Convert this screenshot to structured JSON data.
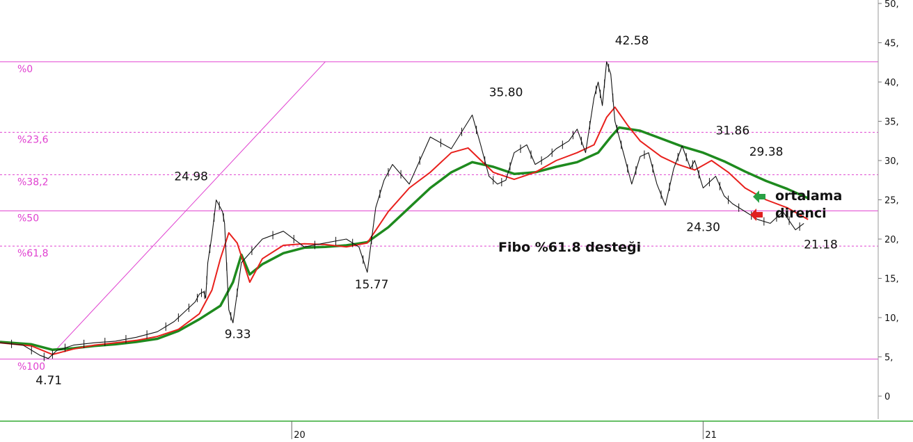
{
  "colors": {
    "fibo_line": "#e040d0",
    "price": "#111111",
    "short_ma": "#e8201c",
    "long_ma": "#1e8a1e",
    "arrow_green": "#2aa044",
    "arrow_red": "#e02020",
    "bottom_axis": "#33aa33"
  },
  "chart_data": {
    "type": "line",
    "title": "",
    "xlabel": "",
    "ylabel": "",
    "ylim": [
      -2.8,
      51
    ],
    "x_tick_labels": [
      {
        "x": 0.52,
        "label": "20"
      },
      {
        "x": 1.5,
        "label": "21"
      }
    ],
    "x_range_years": [
      -0.175,
      2.0
    ],
    "y_ticks": [
      {
        "value": 50,
        "label": "50,"
      },
      {
        "value": 45,
        "label": "45,"
      },
      {
        "value": 40,
        "label": "40,"
      },
      {
        "value": 35,
        "label": "35,"
      },
      {
        "value": 30,
        "label": "30,"
      },
      {
        "value": 25,
        "label": "25,"
      },
      {
        "value": 20,
        "label": "20,"
      },
      {
        "value": 15,
        "label": "15,"
      },
      {
        "value": 10,
        "label": "10,"
      },
      {
        "value": 5,
        "label": "5,"
      },
      {
        "value": 0,
        "label": "0"
      }
    ],
    "fibonacci_levels": [
      {
        "label": "%0",
        "value": 42.58,
        "style": "solid"
      },
      {
        "label": "%23,6",
        "value": 33.6,
        "style": "dashed"
      },
      {
        "label": "%38,2",
        "value": 28.2,
        "style": "dashed"
      },
      {
        "label": "%50",
        "value": 23.6,
        "style": "solid"
      },
      {
        "label": "%61,8",
        "value": 19.1,
        "style": "dashed"
      },
      {
        "label": "%100",
        "value": 4.71,
        "style": "solid"
      }
    ],
    "trend_line": {
      "from": [
        -0.04,
        6.0
      ],
      "to": [
        0.6,
        42.58
      ]
    },
    "annotations": [
      {
        "text": "4.71",
        "x": -0.09,
        "y": 1.5
      },
      {
        "text": "24.98",
        "x": 0.24,
        "y": 27.5
      },
      {
        "text": "9.33",
        "x": 0.36,
        "y": 7.4
      },
      {
        "text": "15.77",
        "x": 0.67,
        "y": 13.7
      },
      {
        "text": "35.80",
        "x": 0.99,
        "y": 38.2
      },
      {
        "text": "42.58",
        "x": 1.29,
        "y": 44.8
      },
      {
        "text": "31.86",
        "x": 1.53,
        "y": 33.3
      },
      {
        "text": "29.38",
        "x": 1.61,
        "y": 30.6
      },
      {
        "text": "24.30",
        "x": 1.46,
        "y": 21.0
      },
      {
        "text": "21.18",
        "x": 1.74,
        "y": 18.8
      }
    ],
    "series": [
      {
        "kind": "price",
        "x": [
          -0.175,
          -0.12,
          -0.08,
          -0.06,
          -0.04,
          0.0,
          0.05,
          0.1,
          0.15,
          0.2,
          0.24,
          0.26,
          0.29,
          0.3,
          0.31,
          0.315,
          0.32,
          0.33,
          0.34,
          0.355,
          0.36,
          0.37,
          0.38,
          0.4,
          0.45,
          0.5,
          0.55,
          0.6,
          0.65,
          0.68,
          0.7,
          0.72,
          0.74,
          0.76,
          0.8,
          0.85,
          0.9,
          0.95,
          0.97,
          0.99,
          1.01,
          1.03,
          1.05,
          1.08,
          1.1,
          1.13,
          1.15,
          1.18,
          1.2,
          1.22,
          1.24,
          1.25,
          1.26,
          1.27,
          1.28,
          1.29,
          1.3,
          1.31,
          1.33,
          1.35,
          1.37,
          1.39,
          1.41,
          1.43,
          1.45,
          1.47,
          1.48,
          1.5,
          1.53,
          1.55,
          1.57,
          1.6,
          1.63,
          1.66,
          1.69,
          1.72,
          1.74
        ],
        "values": [
          6.8,
          6.5,
          5.2,
          4.8,
          5.8,
          6.5,
          6.8,
          7.0,
          7.5,
          8.2,
          9.5,
          10.5,
          12.0,
          13.0,
          13.3,
          12.5,
          17.0,
          20.5,
          24.98,
          23.5,
          22.0,
          11.0,
          9.33,
          17.0,
          20.0,
          21.0,
          19.0,
          19.5,
          20.0,
          19.0,
          15.77,
          24.0,
          27.5,
          29.5,
          27.0,
          33.0,
          31.5,
          35.8,
          32.0,
          28.0,
          27.0,
          27.5,
          31.0,
          32.0,
          29.5,
          30.5,
          31.5,
          32.5,
          34.0,
          31.0,
          38.0,
          40.0,
          37.0,
          42.58,
          41.0,
          35.0,
          33.0,
          31.0,
          27.0,
          30.5,
          31.0,
          27.0,
          24.3,
          29.0,
          31.86,
          29.0,
          30.0,
          26.5,
          28.0,
          25.5,
          24.5,
          23.5,
          22.5,
          22.0,
          23.5,
          21.18,
          22.0
        ]
      },
      {
        "kind": "short_ma",
        "x": [
          -0.175,
          -0.1,
          -0.05,
          0.0,
          0.05,
          0.1,
          0.15,
          0.2,
          0.25,
          0.3,
          0.33,
          0.35,
          0.37,
          0.39,
          0.42,
          0.45,
          0.5,
          0.55,
          0.6,
          0.65,
          0.7,
          0.75,
          0.8,
          0.85,
          0.9,
          0.94,
          1.0,
          1.05,
          1.1,
          1.15,
          1.2,
          1.24,
          1.27,
          1.29,
          1.32,
          1.35,
          1.4,
          1.44,
          1.48,
          1.52,
          1.56,
          1.6,
          1.65,
          1.7,
          1.75
        ],
        "values": [
          6.8,
          6.4,
          5.3,
          6.0,
          6.5,
          6.8,
          7.1,
          7.6,
          8.5,
          10.5,
          13.5,
          17.5,
          20.8,
          19.5,
          14.5,
          17.5,
          19.2,
          19.4,
          19.3,
          19.0,
          19.5,
          23.5,
          26.5,
          28.5,
          31.0,
          31.6,
          28.5,
          27.6,
          28.5,
          30.0,
          31.0,
          32.0,
          35.5,
          36.8,
          34.5,
          32.5,
          30.5,
          29.5,
          28.8,
          30.0,
          28.5,
          26.5,
          25.0,
          24.0,
          22.5
        ]
      },
      {
        "kind": "long_ma",
        "x": [
          -0.175,
          -0.1,
          -0.05,
          0.0,
          0.05,
          0.1,
          0.15,
          0.2,
          0.25,
          0.3,
          0.35,
          0.38,
          0.4,
          0.42,
          0.45,
          0.5,
          0.55,
          0.6,
          0.65,
          0.7,
          0.75,
          0.8,
          0.85,
          0.9,
          0.95,
          1.0,
          1.05,
          1.1,
          1.15,
          1.2,
          1.25,
          1.28,
          1.3,
          1.35,
          1.4,
          1.45,
          1.5,
          1.55,
          1.6,
          1.65,
          1.7,
          1.75
        ],
        "values": [
          6.9,
          6.6,
          5.9,
          6.1,
          6.4,
          6.6,
          6.9,
          7.3,
          8.3,
          9.8,
          11.5,
          14.5,
          18.0,
          15.5,
          16.8,
          18.2,
          18.9,
          19.0,
          19.2,
          19.6,
          21.5,
          24.0,
          26.5,
          28.5,
          29.8,
          29.2,
          28.3,
          28.5,
          29.2,
          29.8,
          31.0,
          33.0,
          34.2,
          33.8,
          32.8,
          31.8,
          31.0,
          29.9,
          28.6,
          27.4,
          26.4,
          25.2
        ]
      }
    ]
  },
  "note": {
    "text": "Fibo %61.8 desteği"
  },
  "legend": {
    "line1": "ortalama",
    "line2": "direnci"
  }
}
